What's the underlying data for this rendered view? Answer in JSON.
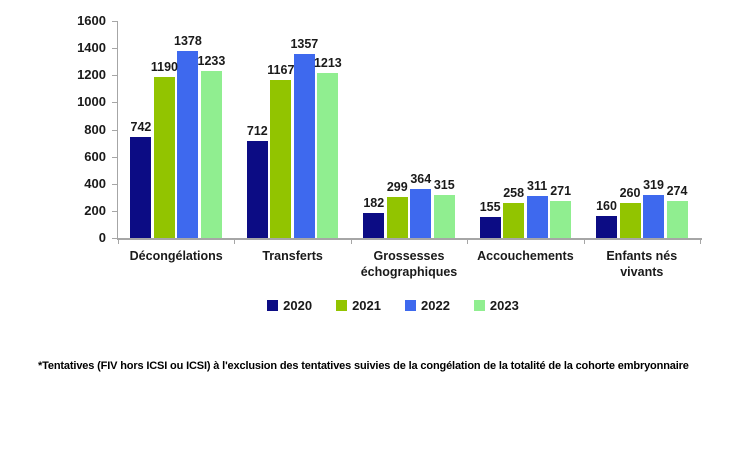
{
  "chart_data": {
    "type": "bar",
    "categories": [
      "Décongélations",
      "Transferts",
      "Grossesses échographiques",
      "Accouchements",
      "Enfants nés vivants"
    ],
    "series": [
      {
        "name": "2020",
        "color": "#0C0C84",
        "values": [
          742,
          712,
          182,
          155,
          160
        ]
      },
      {
        "name": "2021",
        "color": "#92C400",
        "values": [
          1190,
          1167,
          299,
          258,
          260
        ]
      },
      {
        "name": "2022",
        "color": "#3E69EE",
        "values": [
          1378,
          1357,
          364,
          311,
          319
        ]
      },
      {
        "name": "2023",
        "color": "#90EE90",
        "values": [
          1233,
          1213,
          315,
          271,
          274
        ]
      }
    ],
    "title": "",
    "xlabel": "",
    "ylabel": "",
    "ylim": [
      0,
      1600
    ],
    "ytick_step": 200,
    "yticks": [
      0,
      200,
      400,
      600,
      800,
      1000,
      1200,
      1400,
      1600
    ],
    "grid": false,
    "data_labels": true,
    "legend_position": "bottom",
    "axis_color": "#A6A6A6"
  },
  "footnote": "*Tentatives (FIV hors ICSI ou ICSI) à l'exclusion des tentatives suivies de la congélation de la totalité de la cohorte embryonnaire"
}
